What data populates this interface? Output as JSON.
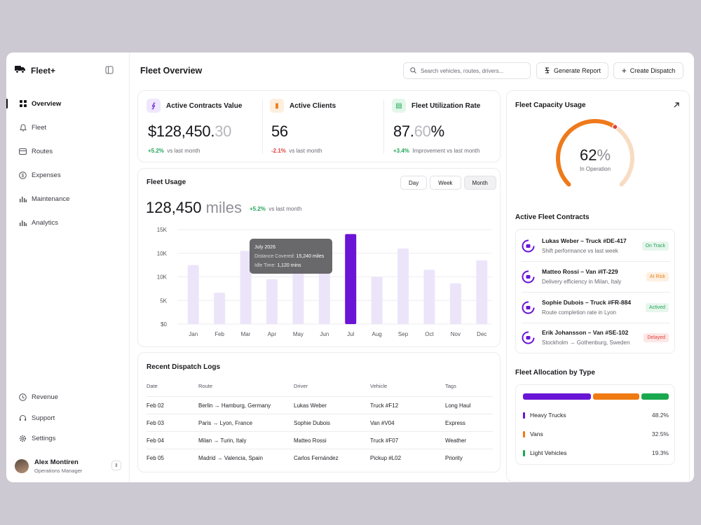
{
  "app": {
    "name": "Fleet+"
  },
  "sidebar": {
    "items": [
      {
        "label": "Overview",
        "icon": "grid-icon",
        "active": true
      },
      {
        "label": "Fleet",
        "icon": "bell-icon"
      },
      {
        "label": "Routes",
        "icon": "card-icon"
      },
      {
        "label": "Expenses",
        "icon": "dollar-icon"
      },
      {
        "label": "Maintenance",
        "icon": "bars-icon"
      },
      {
        "label": "Analytics",
        "icon": "bars-icon"
      }
    ],
    "bottom_items": [
      {
        "label": "Revenue",
        "icon": "clock-icon"
      },
      {
        "label": "Support",
        "icon": "headset-icon"
      },
      {
        "label": "Settings",
        "icon": "gear-icon"
      }
    ],
    "user": {
      "name": "Alex Montiren",
      "role": "Operations Manager"
    }
  },
  "header": {
    "title": "Fleet Overview",
    "search_placeholder": "Search vehicles, routes, drivers...",
    "generate_report": "Generate Report",
    "create_dispatch": "Create Dispatch"
  },
  "kpis": [
    {
      "title": "Active Contracts Value",
      "value_main": "$128,450.",
      "value_dim": "30",
      "value_suffix": "",
      "delta": "+5.2%",
      "delta_dir": "up",
      "delta_text": "vs last month",
      "badge_color": "#7a2fe0",
      "badge_bg": "#efe7fd"
    },
    {
      "title": "Active Clients",
      "value_main": "56",
      "value_dim": "",
      "value_suffix": "",
      "delta": "-2.1%",
      "delta_dir": "down",
      "delta_text": "vs last month",
      "badge_color": "#f07a12",
      "badge_bg": "#fdeede"
    },
    {
      "title": "Fleet Utilization Rate",
      "value_main": "87.",
      "value_dim": "60",
      "value_suffix": "%",
      "delta": "+3.4%",
      "delta_dir": "up",
      "delta_text": "Improvement vs last month",
      "badge_color": "#1aa84e",
      "badge_bg": "#e3f6ea"
    }
  ],
  "usage": {
    "title": "Fleet Usage",
    "periods": [
      "Day",
      "Week",
      "Month"
    ],
    "selected_period": "Month",
    "value": "128,450",
    "unit": "miles",
    "delta": "+5.2%",
    "delta_text": "vs last month",
    "tooltip": {
      "title": "July 2026",
      "line1_label": "Distance Covered:",
      "line1_value": "15,240 miles",
      "line2_label": "Idle Time:",
      "line2_value": "1,120 mins"
    }
  },
  "chart_data": {
    "type": "bar",
    "title": "Fleet Usage",
    "categories": [
      "Jan",
      "Feb",
      "Mar",
      "Apr",
      "May",
      "Jun",
      "Jul",
      "Aug",
      "Sep",
      "Oct",
      "Nov",
      "Dec"
    ],
    "values": [
      10000,
      5300,
      12400,
      7600,
      9800,
      9000,
      15240,
      8000,
      12800,
      9200,
      6900,
      10800
    ],
    "highlight_index": 6,
    "y_ticks": [
      "$0",
      "5K",
      "10K",
      "10K",
      "15K"
    ],
    "ylim": [
      0,
      16000
    ],
    "grid": true,
    "colors": {
      "bar": "#ece5fa",
      "highlight": "#6a14d6"
    }
  },
  "logs": {
    "title": "Recent Dispatch Logs",
    "columns": [
      "Date",
      "Route",
      "Driver",
      "Vehicle",
      "Tags"
    ],
    "rows": [
      [
        "Feb 02",
        "Berlin → Hamburg, Germany",
        "Lukas Weber",
        "Truck #F12",
        "Long Haul"
      ],
      [
        "Feb 03",
        "Paris → Lyon, France",
        "Sophie Dubois",
        "Van #V04",
        "Express"
      ],
      [
        "Feb 04",
        "Milan → Turin, Italy",
        "Matteo Rossi",
        "Truck #F07",
        "Weather"
      ],
      [
        "Feb 05",
        "Madrid → Valencia, Spain",
        "Carlos Fernández",
        "Pickup #L02",
        "Priority"
      ]
    ]
  },
  "capacity": {
    "title": "Fleet Capacity Usage",
    "value": "62",
    "value_suffix": "%",
    "percent": 62,
    "label": "In Operation"
  },
  "contracts": {
    "title": "Active Fleet Contracts",
    "items": [
      {
        "name": "Lukas Weber – Truck #DE-417",
        "desc": "Shift performance vs last week",
        "status": "On Track",
        "color": "#22a55a",
        "bg": "#e6f6ec"
      },
      {
        "name": "Matteo Rossi – Van #IT-229",
        "desc": "Delivery efficiency in Milan, Italy",
        "status": "At Risk",
        "color": "#e8821c",
        "bg": "#fdf0e2"
      },
      {
        "name": "Sophie Dubois – Truck #FR-884",
        "desc": "Route completion rate in Lyon",
        "status": "Actived",
        "color": "#22a55a",
        "bg": "#e6f6ec"
      },
      {
        "name": "Erik Johansson – Van #SE-102",
        "desc": "Stockholm → Gothenburg, Sweden",
        "status": "Delayed",
        "color": "#e0413b",
        "bg": "#fde7e6"
      }
    ]
  },
  "allocation": {
    "title": "Fleet Allocation by Type",
    "items": [
      {
        "label": "Heavy Trucks",
        "value": "48.2%",
        "percent": 48.2,
        "color": "#6a14d6"
      },
      {
        "label": "Vans",
        "value": "32.5%",
        "percent": 32.5,
        "color": "#f07a12"
      },
      {
        "label": "Light Vehicles",
        "value": "19.3%",
        "percent": 19.3,
        "color": "#1aa84e"
      }
    ]
  }
}
